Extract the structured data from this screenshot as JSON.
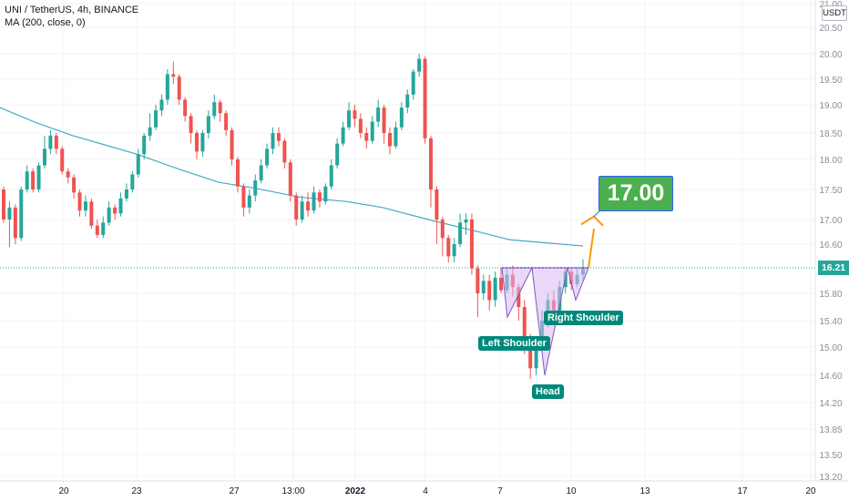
{
  "legend": {
    "title": "UNI / TetherUS, 4h, BINANCE",
    "indicator": "MA (200, close, 0)"
  },
  "currency_label": "USDT",
  "last_price": "16.21",
  "annotations": {
    "target": "17.00",
    "left_shoulder": "Left Shoulder",
    "head": "Head",
    "right_shoulder": "Right Shoulder"
  },
  "colors": {
    "up": "#26a69a",
    "down": "#ef5350",
    "ma": "#4aa8c8",
    "pattern_fill": "#d7b8f0",
    "arrow": "#ff9800",
    "target_bg": "#4caf50"
  },
  "chart_data": {
    "type": "candlestick",
    "title": "UNI / TetherUS, 4h, BINANCE",
    "symbol": "UNIUSDT",
    "interval": "4h",
    "exchange": "BINANCE",
    "y_ticks": [
      "21.00",
      "20.50",
      "20.00",
      "19.50",
      "19.00",
      "18.50",
      "18.00",
      "17.50",
      "17.00",
      "16.60",
      "16.21",
      "15.80",
      "15.40",
      "15.00",
      "14.60",
      "14.20",
      "13.85",
      "13.50",
      "13.20"
    ],
    "x_ticks": [
      "20",
      "23",
      "27",
      "13:00",
      "2022",
      "4",
      "7",
      "10",
      "13",
      "17",
      "20"
    ],
    "ma_period": 200,
    "ma_points": [
      [
        0,
        18.95
      ],
      [
        40,
        18.68
      ],
      [
        80,
        18.45
      ],
      [
        120,
        18.25
      ],
      [
        150,
        18.1
      ],
      [
        200,
        17.82
      ],
      [
        240,
        17.62
      ],
      [
        280,
        17.52
      ],
      [
        330,
        17.37
      ],
      [
        380,
        17.3
      ],
      [
        420,
        17.2
      ],
      [
        470,
        17.0
      ],
      [
        520,
        16.82
      ],
      [
        560,
        16.67
      ],
      [
        600,
        16.62
      ],
      [
        640,
        16.57
      ]
    ],
    "candles": [
      [
        17.5,
        17.0,
        17.55,
        16.95
      ],
      [
        17.0,
        17.2,
        17.3,
        16.55
      ],
      [
        17.2,
        16.7,
        17.25,
        16.6
      ],
      [
        16.7,
        17.5,
        17.55,
        16.65
      ],
      [
        17.5,
        17.8,
        17.9,
        17.45
      ],
      [
        17.8,
        17.5,
        17.85,
        17.45
      ],
      [
        17.5,
        17.9,
        17.95,
        17.45
      ],
      [
        17.9,
        18.2,
        18.45,
        17.85
      ],
      [
        18.2,
        18.45,
        18.55,
        18.1
      ],
      [
        18.45,
        18.2,
        18.5,
        18.1
      ],
      [
        18.2,
        17.8,
        18.25,
        17.75
      ],
      [
        17.8,
        17.7,
        17.85,
        17.6
      ],
      [
        17.7,
        17.45,
        17.75,
        17.35
      ],
      [
        17.45,
        17.15,
        17.5,
        17.05
      ],
      [
        17.15,
        17.3,
        17.4,
        17.05
      ],
      [
        17.3,
        16.9,
        17.35,
        16.85
      ],
      [
        16.9,
        16.75,
        17.0,
        16.7
      ],
      [
        16.75,
        16.95,
        17.05,
        16.7
      ],
      [
        16.95,
        17.2,
        17.3,
        16.9
      ],
      [
        17.2,
        17.1,
        17.25,
        17.0
      ],
      [
        17.1,
        17.35,
        17.45,
        17.05
      ],
      [
        17.35,
        17.5,
        17.6,
        17.3
      ],
      [
        17.5,
        17.75,
        17.8,
        17.45
      ],
      [
        17.75,
        18.1,
        18.2,
        17.7
      ],
      [
        18.1,
        18.45,
        18.5,
        18.0
      ],
      [
        18.45,
        18.6,
        18.85,
        18.35
      ],
      [
        18.6,
        18.9,
        19.0,
        18.55
      ],
      [
        18.9,
        19.1,
        19.2,
        18.8
      ],
      [
        19.1,
        19.6,
        19.7,
        19.0
      ],
      [
        19.6,
        19.55,
        19.85,
        19.4
      ],
      [
        19.55,
        19.1,
        19.6,
        19.0
      ],
      [
        19.1,
        18.8,
        19.15,
        18.7
      ],
      [
        18.8,
        18.5,
        18.85,
        18.3
      ],
      [
        18.5,
        18.15,
        18.55,
        18.0
      ],
      [
        18.15,
        18.5,
        18.55,
        18.05
      ],
      [
        18.5,
        18.8,
        18.9,
        18.4
      ],
      [
        18.8,
        19.05,
        19.2,
        18.75
      ],
      [
        19.05,
        18.85,
        19.1,
        18.7
      ],
      [
        18.85,
        18.55,
        18.9,
        18.45
      ],
      [
        18.55,
        18.0,
        18.6,
        17.9
      ],
      [
        18.0,
        17.55,
        18.05,
        17.45
      ],
      [
        17.55,
        17.2,
        17.6,
        17.05
      ],
      [
        17.2,
        17.4,
        17.5,
        17.1
      ],
      [
        17.4,
        17.65,
        17.75,
        17.3
      ],
      [
        17.65,
        17.9,
        18.0,
        17.6
      ],
      [
        17.9,
        18.2,
        18.3,
        17.85
      ],
      [
        18.2,
        18.5,
        18.6,
        18.1
      ],
      [
        18.5,
        18.35,
        18.6,
        18.25
      ],
      [
        18.35,
        17.95,
        18.4,
        17.85
      ],
      [
        17.95,
        17.4,
        18.0,
        17.3
      ],
      [
        17.4,
        17.0,
        17.45,
        16.9
      ],
      [
        17.0,
        17.3,
        17.4,
        16.95
      ],
      [
        17.3,
        17.15,
        17.45,
        17.05
      ],
      [
        17.15,
        17.45,
        17.55,
        17.1
      ],
      [
        17.45,
        17.3,
        17.5,
        17.2
      ],
      [
        17.3,
        17.55,
        17.6,
        17.25
      ],
      [
        17.55,
        17.9,
        18.0,
        17.5
      ],
      [
        17.9,
        18.3,
        18.4,
        17.85
      ],
      [
        18.3,
        18.6,
        18.7,
        18.25
      ],
      [
        18.6,
        18.9,
        19.05,
        18.55
      ],
      [
        18.9,
        18.75,
        19.0,
        18.6
      ],
      [
        18.75,
        18.5,
        18.85,
        18.4
      ],
      [
        18.5,
        18.35,
        18.6,
        18.2
      ],
      [
        18.35,
        18.7,
        18.8,
        18.3
      ],
      [
        18.7,
        18.95,
        19.1,
        18.6
      ],
      [
        18.95,
        18.5,
        19.0,
        18.3
      ],
      [
        18.5,
        18.25,
        18.6,
        18.1
      ],
      [
        18.25,
        18.6,
        18.7,
        18.2
      ],
      [
        18.6,
        18.95,
        19.05,
        18.55
      ],
      [
        18.95,
        19.2,
        19.3,
        18.85
      ],
      [
        19.2,
        19.65,
        19.7,
        19.1
      ],
      [
        19.65,
        19.9,
        20.0,
        19.55
      ],
      [
        19.9,
        18.4,
        19.95,
        18.3
      ],
      [
        18.4,
        17.5,
        18.45,
        17.2
      ],
      [
        17.5,
        17.0,
        17.55,
        16.6
      ],
      [
        17.0,
        16.7,
        17.05,
        16.4
      ],
      [
        16.7,
        16.4,
        16.75,
        16.3
      ],
      [
        16.4,
        16.6,
        16.7,
        16.3
      ],
      [
        16.6,
        16.95,
        17.1,
        16.55
      ],
      [
        16.95,
        17.0,
        17.1,
        16.75
      ],
      [
        17.0,
        16.2,
        17.1,
        16.1
      ],
      [
        16.2,
        15.8,
        16.25,
        15.45
      ],
      [
        15.8,
        16.0,
        16.1,
        15.7
      ],
      [
        16.0,
        15.7,
        16.1,
        15.55
      ],
      [
        15.7,
        16.05,
        16.15,
        15.6
      ],
      [
        16.05,
        15.85,
        16.2,
        15.8
      ],
      [
        15.85,
        16.1,
        16.2,
        15.8
      ],
      [
        16.1,
        15.9,
        16.25,
        15.75
      ],
      [
        15.9,
        15.6,
        15.95,
        15.4
      ],
      [
        15.6,
        15.1,
        15.7,
        14.9
      ],
      [
        15.1,
        14.7,
        15.2,
        14.55
      ],
      [
        14.7,
        15.0,
        15.1,
        14.6
      ],
      [
        15.0,
        15.4,
        15.55,
        14.95
      ],
      [
        15.4,
        15.7,
        15.8,
        15.3
      ],
      [
        15.7,
        15.55,
        15.85,
        15.45
      ],
      [
        15.55,
        15.9,
        16.0,
        15.5
      ],
      [
        15.9,
        16.15,
        16.2,
        15.8
      ],
      [
        16.15,
        15.95,
        16.2,
        15.85
      ],
      [
        15.95,
        16.1,
        16.2,
        15.9
      ],
      [
        16.1,
        16.21,
        16.35,
        16.0
      ]
    ]
  }
}
